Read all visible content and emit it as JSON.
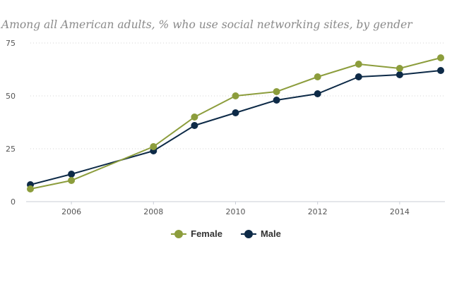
{
  "chart_data": {
    "type": "line",
    "title": "Among all American adults, % who use social networking sites, by gender",
    "x": [
      2005,
      2006,
      2008,
      2009,
      2010,
      2011,
      2012,
      2013,
      2014,
      2015
    ],
    "x_ticks": [
      "2006",
      "2008",
      "2010",
      "2012",
      "2014"
    ],
    "y_ticks": [
      "0",
      "25",
      "50",
      "75"
    ],
    "ylim": [
      0,
      75
    ],
    "xlim": [
      2005,
      2015
    ],
    "grid": "horizontal dotted",
    "legend_position": "bottom-center",
    "series": [
      {
        "name": "Female",
        "color": "#8c9d3c",
        "values": [
          6,
          10,
          26,
          40,
          50,
          52,
          59,
          65,
          63,
          68
        ]
      },
      {
        "name": "Male",
        "color": "#0d2a47",
        "values": [
          8,
          13,
          24,
          36,
          42,
          48,
          51,
          59,
          60,
          62
        ]
      }
    ]
  }
}
